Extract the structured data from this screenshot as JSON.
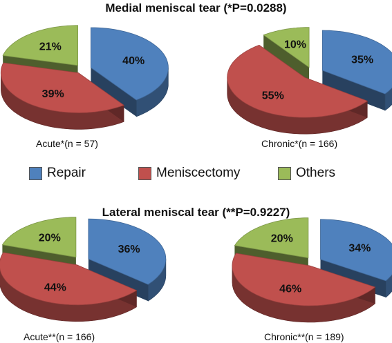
{
  "medial_title": "Medial meniscal tear (*P=0.0288)",
  "lateral_title": "Lateral meniscal tear (**P=0.9227)",
  "legend": [
    {
      "label": "Repair",
      "color": "#4F81BD"
    },
    {
      "label": "Meniscectomy",
      "color": "#C0504D"
    },
    {
      "label": "Others",
      "color": "#9BBB59"
    }
  ],
  "chart_data": [
    {
      "type": "pie",
      "title": "Acute*(n = 57)",
      "categories": [
        "Repair",
        "Meniscectomy",
        "Others"
      ],
      "values": [
        40,
        39,
        21
      ],
      "labels": [
        "40%",
        "39%",
        "21%"
      ]
    },
    {
      "type": "pie",
      "title": "Chronic*(n = 166)",
      "categories": [
        "Repair",
        "Meniscectomy",
        "Others"
      ],
      "values": [
        35,
        55,
        10
      ],
      "labels": [
        "35%",
        "55%",
        "10%"
      ]
    },
    {
      "type": "pie",
      "title": "Acute**(n = 166)",
      "categories": [
        "Repair",
        "Meniscectomy",
        "Others"
      ],
      "values": [
        36,
        44,
        20
      ],
      "labels": [
        "36%",
        "44%",
        "20%"
      ]
    },
    {
      "type": "pie",
      "title": "Chronic**(n = 189)",
      "categories": [
        "Repair",
        "Meniscectomy",
        "Others"
      ],
      "values": [
        34,
        46,
        20
      ],
      "labels": [
        "34%",
        "46%",
        "20%"
      ]
    }
  ]
}
